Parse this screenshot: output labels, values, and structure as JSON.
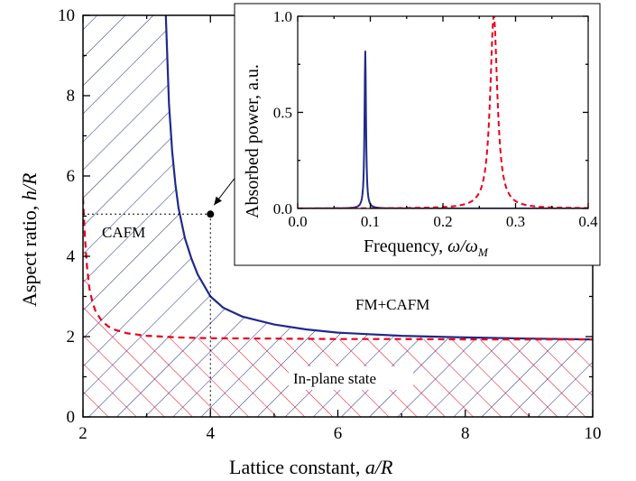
{
  "chart_data": [
    {
      "type": "line",
      "role": "main",
      "xlabel_text": "Lattice constant, ",
      "xlabel_var": "a/R",
      "ylabel_text": "Aspect ratio, ",
      "ylabel_var": "h/R",
      "xlim": [
        2,
        10
      ],
      "ylim": [
        0,
        10
      ],
      "xticks": [
        "2",
        "4",
        "6",
        "8",
        "10"
      ],
      "yticks": [
        "0",
        "2",
        "4",
        "6",
        "8",
        "10"
      ],
      "grid": false,
      "series": [
        {
          "style": "solid",
          "color": "#1f2a8a",
          "x": [
            3.3,
            3.35,
            3.4,
            3.45,
            3.5,
            3.6,
            3.7,
            3.8,
            4.0,
            4.2,
            4.5,
            5.0,
            5.5,
            6.0,
            7.0,
            8.0,
            9.0,
            10.0
          ],
          "y": [
            10.0,
            7.8,
            6.6,
            5.8,
            5.2,
            4.45,
            3.95,
            3.55,
            3.0,
            2.72,
            2.5,
            2.3,
            2.18,
            2.1,
            2.02,
            1.98,
            1.95,
            1.93
          ]
        },
        {
          "style": "dashed",
          "color": "#e8001c",
          "x": [
            2.0,
            2.03,
            2.06,
            2.1,
            2.15,
            2.2,
            2.3,
            2.4,
            2.5,
            2.7,
            3.0,
            3.5,
            4.0,
            5.0,
            6.0,
            7.0,
            8.0,
            10.0
          ],
          "y": [
            5.45,
            4.5,
            3.8,
            3.2,
            2.85,
            2.62,
            2.38,
            2.25,
            2.17,
            2.08,
            2.02,
            1.98,
            1.96,
            1.95,
            1.94,
            1.94,
            1.93,
            1.93
          ]
        }
      ],
      "annotations": {
        "cafm": "CAFM",
        "fm_cafm": "FM+CAFM",
        "in_plane": "In-plane state"
      },
      "marker_point": {
        "x": 4.0,
        "y": 5.05
      }
    },
    {
      "type": "line",
      "role": "inset",
      "xlabel_text": "Frequency, ",
      "xlabel_var": "ω/ω",
      "xlabel_sub": "M",
      "ylabel": "Absorbed power, a.u.",
      "xlim": [
        0.0,
        0.4
      ],
      "ylim": [
        0.0,
        1.0
      ],
      "xticks": [
        "0.0",
        "0.1",
        "0.2",
        "0.3",
        "0.4"
      ],
      "yticks": [
        "0.0",
        "0.5",
        "1.0"
      ],
      "series": [
        {
          "style": "solid",
          "color": "#1f2a8a",
          "center": 0.093,
          "peak": 0.82,
          "width": 0.0012
        },
        {
          "style": "dashed",
          "color": "#e8001c",
          "center": 0.27,
          "peak": 1.0,
          "width": 0.006
        }
      ]
    }
  ]
}
